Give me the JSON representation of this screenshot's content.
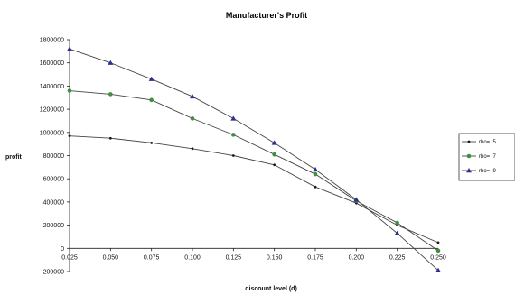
{
  "chart_data": {
    "type": "line",
    "title": "Manufacturer's Profit",
    "xlabel": "discount level (d)",
    "ylabel": "profit",
    "x": [
      0.025,
      0.05,
      0.075,
      0.1,
      0.125,
      0.15,
      0.175,
      0.2,
      0.225,
      0.25
    ],
    "x_tick_labels": [
      "0.025",
      "0.050",
      "0.075",
      "0.100",
      "0.125",
      "0.150",
      "0.175",
      "0.200",
      "0.225",
      "0.250"
    ],
    "ylim": [
      -200000,
      1800000
    ],
    "y_ticks": [
      -200000,
      0,
      200000,
      400000,
      600000,
      800000,
      1000000,
      1200000,
      1400000,
      1600000,
      1800000
    ],
    "y_tick_labels": [
      "-200000",
      "0",
      "200000",
      "400000",
      "600000",
      "800000",
      "1000000",
      "1200000",
      "1400000",
      "1600000",
      "1800000"
    ],
    "grid": false,
    "legend_position": "right",
    "series": [
      {
        "name": "rho= .5",
        "marker": "dot",
        "color": "#1a1a1a",
        "values": [
          970000,
          950000,
          910000,
          860000,
          800000,
          720000,
          530000,
          390000,
          200000,
          50000
        ]
      },
      {
        "name": "rho= .7",
        "marker": "circle",
        "color": "#3f8f3f",
        "values": [
          1360000,
          1330000,
          1280000,
          1120000,
          980000,
          810000,
          640000,
          410000,
          220000,
          -20000
        ]
      },
      {
        "name": "rho= .9",
        "marker": "triangle",
        "color": "#2b2f8f",
        "values": [
          1720000,
          1600000,
          1460000,
          1310000,
          1120000,
          910000,
          680000,
          420000,
          130000,
          -190000
        ]
      }
    ]
  }
}
